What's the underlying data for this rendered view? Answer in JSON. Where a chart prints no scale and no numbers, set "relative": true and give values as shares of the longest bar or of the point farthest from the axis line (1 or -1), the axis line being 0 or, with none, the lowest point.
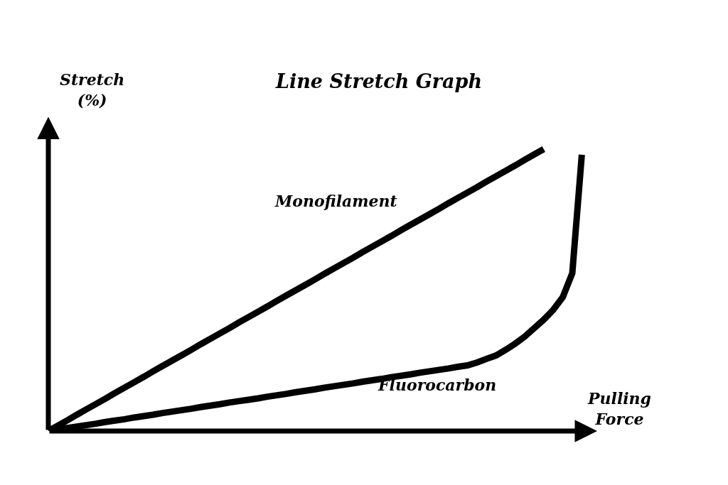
{
  "chart_data": {
    "type": "line",
    "title": "Line Stretch Graph",
    "xlabel": "Pulling Force",
    "ylabel": "Stretch (%)",
    "relative": true,
    "legend": false,
    "marker": "none",
    "line_style": "solid",
    "categories": [
      null,
      null,
      null,
      null,
      null,
      null,
      null,
      null,
      null,
      null,
      null,
      null,
      null,
      null,
      null,
      null,
      null,
      null,
      null,
      null,
      null,
      null,
      null,
      null,
      null,
      null,
      null,
      null,
      null,
      null,
      null,
      null,
      null,
      null,
      null,
      null,
      null,
      null,
      null,
      null,
      null,
      null,
      null,
      null,
      null,
      null,
      null,
      null,
      null,
      null,
      null,
      null,
      null,
      null,
      null,
      null,
      null
    ],
    "series": [
      {
        "name": "Monofilament",
        "color": "#000000",
        "values": [
          0,
          0.019,
          0.038,
          0.058,
          0.077,
          0.096,
          0.115,
          0.135,
          0.154,
          0.173,
          0.192,
          0.212,
          0.231,
          0.25,
          0.269,
          0.288,
          0.308,
          0.327,
          0.346,
          0.365,
          0.385,
          0.404,
          0.423,
          0.442,
          0.462,
          0.481,
          0.5,
          0.519,
          0.538,
          0.558,
          0.577,
          0.596,
          0.615,
          0.635,
          0.654,
          0.673,
          0.692,
          0.712,
          0.731,
          0.75,
          0.769,
          0.788,
          0.808,
          0.827,
          0.846,
          0.865,
          0.885,
          0.904,
          0.923,
          0.942,
          0.962,
          0.981,
          1,
          null,
          null,
          null,
          null
        ]
      },
      {
        "name": "Fluorocarbon",
        "color": "#000000",
        "values": [
          0,
          0.005,
          0.011,
          0.016,
          0.021,
          0.026,
          0.032,
          0.037,
          0.042,
          0.048,
          0.053,
          0.058,
          0.064,
          0.069,
          0.074,
          0.079,
          0.085,
          0.09,
          0.095,
          0.101,
          0.106,
          0.111,
          0.116,
          0.122,
          0.127,
          0.132,
          0.138,
          0.143,
          0.148,
          0.154,
          0.159,
          0.164,
          0.169,
          0.175,
          0.18,
          0.185,
          0.191,
          0.196,
          0.201,
          0.207,
          0.212,
          0.217,
          0.222,
          0.228,
          0.233,
          0.243,
          0.256,
          0.268,
          0.288,
          0.31,
          0.335,
          0.365,
          0.395,
          0.43,
          0.475,
          0.56,
          0.98
        ]
      }
    ]
  }
}
